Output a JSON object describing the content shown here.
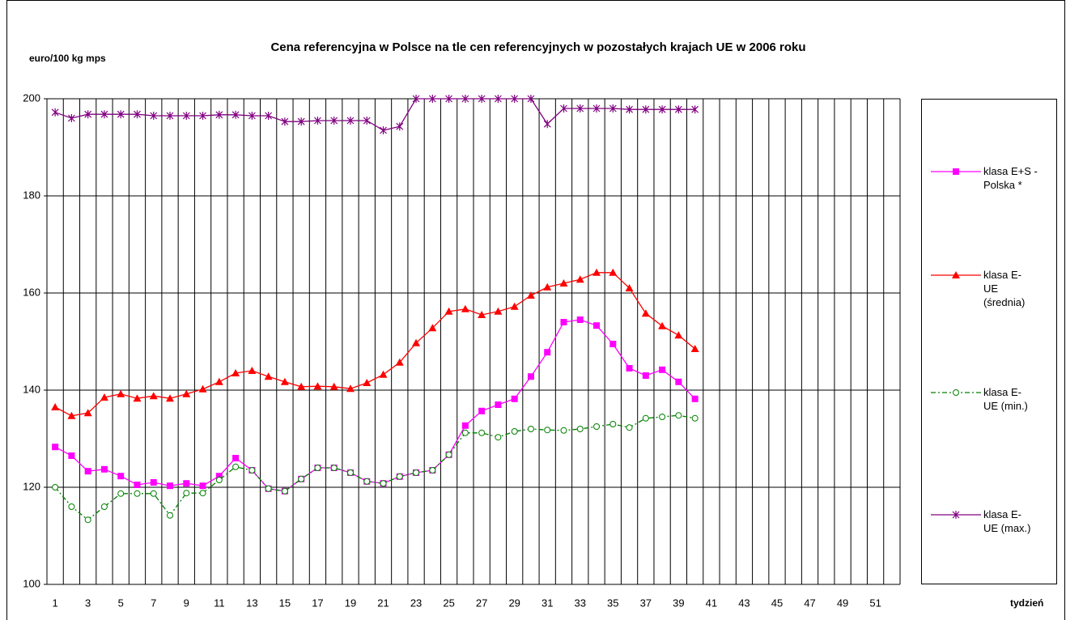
{
  "chart_data": {
    "type": "line",
    "title": "Cena referencyjna w Polsce na tle cen referencyjnych w pozostałych krajach UE w 2006 roku",
    "y_label": "euro/100 kg mps",
    "x_label": "tydzień",
    "categories": [
      1,
      null,
      3,
      null,
      5,
      null,
      7,
      null,
      9,
      null,
      11,
      null,
      13,
      null,
      15,
      null,
      17,
      null,
      19,
      null,
      21,
      null,
      23,
      null,
      25,
      null,
      27,
      null,
      29,
      null,
      31,
      null,
      33,
      null,
      35,
      null,
      37,
      null,
      39,
      null,
      41,
      null,
      43,
      null,
      45,
      null,
      47,
      null,
      49,
      null,
      51,
      null
    ],
    "ylim": [
      100,
      200
    ],
    "yticks": [
      100,
      120,
      140,
      160,
      180,
      200
    ],
    "grid": true,
    "legend": "right",
    "series": [
      {
        "name": "klasa E+S - Polska *",
        "color": "#ff00ff",
        "marker": "square",
        "values": [
          128.3,
          126.5,
          123.3,
          123.7,
          122.3,
          120.5,
          121,
          120.3,
          120.8,
          120.3,
          122.3,
          126,
          123.5,
          119.7,
          119.2,
          121.7,
          124,
          124,
          123,
          121.2,
          120.8,
          122.2,
          123,
          123.5,
          126.7,
          132.7,
          135.7,
          137,
          138.2,
          142.8,
          147.8,
          154,
          154.5,
          153.3,
          149.5,
          144.5,
          143,
          144.2,
          141.7,
          138.2,
          null,
          null,
          null,
          null,
          null,
          null,
          null,
          null,
          null,
          null,
          null,
          null
        ]
      },
      {
        "name": "klasa E- UE (średnia)",
        "color": "#ff0000",
        "marker": "triangle",
        "values": [
          136.5,
          134.7,
          135.3,
          138.5,
          139.2,
          138.3,
          138.8,
          138.3,
          139.2,
          140.2,
          141.7,
          143.5,
          144,
          142.8,
          141.7,
          140.7,
          140.8,
          140.7,
          140.3,
          141.5,
          143.2,
          145.7,
          149.7,
          152.8,
          156.2,
          156.7,
          155.5,
          156.2,
          157.2,
          159.5,
          161.2,
          162,
          162.8,
          164.2,
          164.2,
          161,
          155.8,
          153.2,
          151.3,
          148.5,
          null,
          null,
          null,
          null,
          null,
          null,
          null,
          null,
          null,
          null,
          null,
          null
        ]
      },
      {
        "name": "klasa E- UE (min.)",
        "color": "#008000",
        "marker": "circle",
        "dash": "dashdot",
        "values": [
          120,
          116,
          113.3,
          116,
          118.7,
          118.7,
          118.7,
          114.2,
          118.8,
          118.8,
          121.5,
          124.2,
          123.5,
          119.7,
          119.2,
          121.7,
          124,
          124,
          123,
          121.2,
          120.8,
          122.2,
          123,
          123.5,
          126.7,
          131.2,
          131.2,
          130.3,
          131.5,
          132,
          131.8,
          131.7,
          132,
          132.5,
          133,
          132.3,
          134.2,
          134.5,
          134.8,
          134.2,
          null,
          null,
          null,
          null,
          null,
          null,
          null,
          null,
          null,
          null,
          null,
          null
        ]
      },
      {
        "name": "klasa E- UE (max.)",
        "color": "#800080",
        "marker": "star",
        "values": [
          197.2,
          196,
          196.8,
          196.8,
          196.8,
          196.8,
          196.5,
          196.5,
          196.5,
          196.5,
          196.7,
          196.7,
          196.5,
          196.5,
          195.3,
          195.3,
          195.5,
          195.5,
          195.5,
          195.5,
          193.5,
          194.3,
          200,
          200,
          200,
          200,
          200,
          200,
          200,
          200,
          194.8,
          198,
          198,
          198,
          198,
          197.8,
          197.8,
          197.8,
          197.8,
          197.8,
          null,
          null,
          null,
          null,
          null,
          null,
          null,
          null,
          null,
          null,
          null,
          null
        ]
      }
    ]
  }
}
